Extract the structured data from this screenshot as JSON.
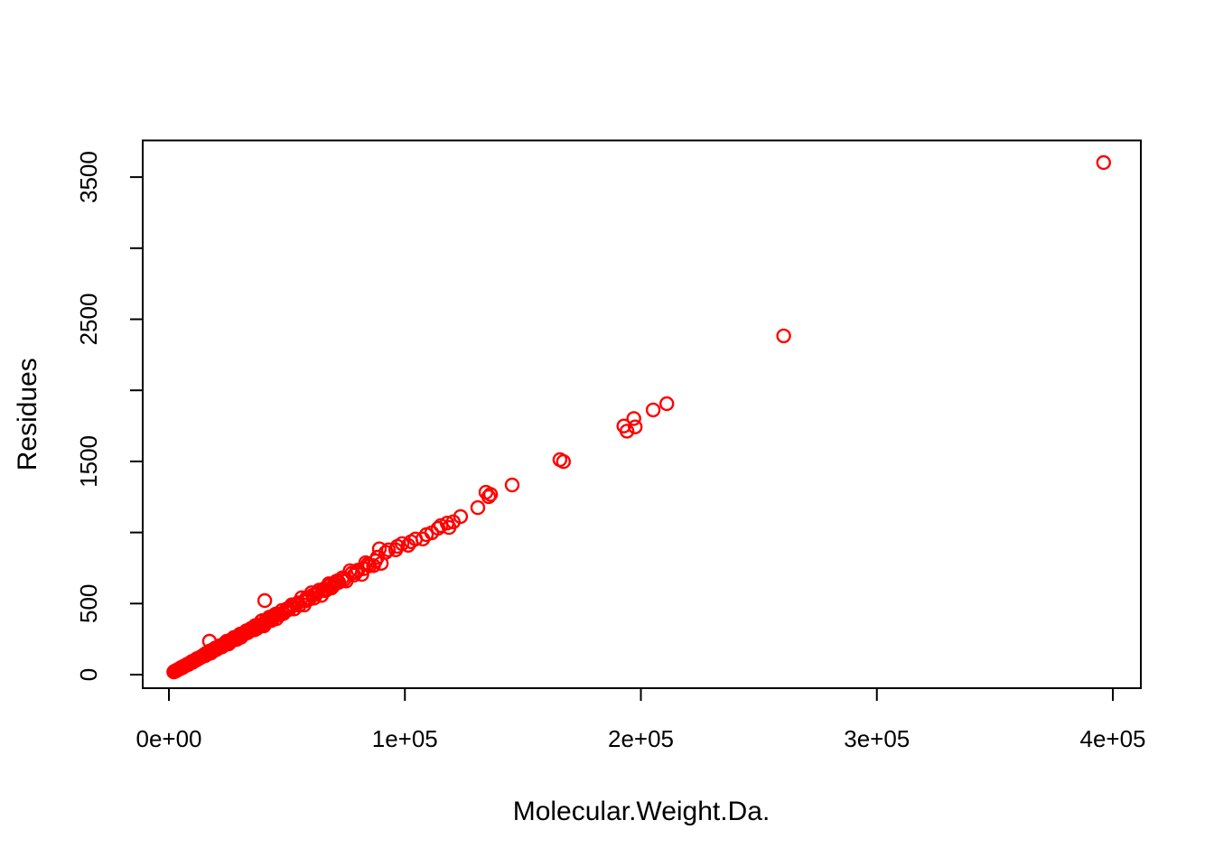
{
  "figure": {
    "background_color": "#FFFFFF",
    "axis_color": "#000000",
    "point_color": "#FF0000",
    "marker": "open-circle"
  },
  "chart_data": {
    "type": "scatter",
    "title": "",
    "xlabel": "Molecular.Weight.Da.",
    "ylabel": "Residues",
    "legend": "none",
    "grid": false,
    "xlim": [
      -15000,
      412000
    ],
    "ylim": [
      -95,
      3760
    ],
    "x_ticks": [
      {
        "value": 0,
        "label": "0e+00"
      },
      {
        "value": 100000,
        "label": "1e+05"
      },
      {
        "value": 200000,
        "label": "2e+05"
      },
      {
        "value": 300000,
        "label": "3e+05"
      },
      {
        "value": 400000,
        "label": "4e+05"
      }
    ],
    "y_ticks": [
      {
        "value": 0,
        "label": "0"
      },
      {
        "value": 500,
        "label": "500"
      },
      {
        "value": 1000,
        "label": ""
      },
      {
        "value": 1500,
        "label": "1500"
      },
      {
        "value": 2000,
        "label": ""
      },
      {
        "value": 2500,
        "label": "2500"
      },
      {
        "value": 3000,
        "label": ""
      },
      {
        "value": 3500,
        "label": "3500"
      }
    ],
    "points": [
      [
        2050,
        19
      ],
      [
        2300,
        22
      ],
      [
        2450,
        24
      ],
      [
        2650,
        25
      ],
      [
        3000,
        29
      ],
      [
        2200,
        20
      ],
      [
        2800,
        26
      ],
      [
        3400,
        30
      ],
      [
        4000,
        37
      ],
      [
        4600,
        41
      ],
      [
        5200,
        50
      ],
      [
        5800,
        50
      ],
      [
        6400,
        59
      ],
      [
        7000,
        63
      ],
      [
        7600,
        72
      ],
      [
        8200,
        72
      ],
      [
        8800,
        80
      ],
      [
        9400,
        88
      ],
      [
        10000,
        86
      ],
      [
        10600,
        97
      ],
      [
        11200,
        100
      ],
      [
        11800,
        111
      ],
      [
        12400,
        110
      ],
      [
        13000,
        118
      ],
      [
        13600,
        126
      ],
      [
        14200,
        128
      ],
      [
        14800,
        140
      ],
      [
        15400,
        134
      ],
      [
        16000,
        147
      ],
      [
        16600,
        147
      ],
      [
        17200,
        165
      ],
      [
        17800,
        152
      ],
      [
        18400,
        170
      ],
      [
        19000,
        170
      ],
      [
        19600,
        187
      ],
      [
        20200,
        177
      ],
      [
        2500,
        23
      ],
      [
        3100,
        27
      ],
      [
        3700,
        35
      ],
      [
        4300,
        38
      ],
      [
        4900,
        45
      ],
      [
        5500,
        47
      ],
      [
        6100,
        58
      ],
      [
        6700,
        60
      ],
      [
        7300,
        65
      ],
      [
        7900,
        74
      ],
      [
        8500,
        74
      ],
      [
        9100,
        83
      ],
      [
        9700,
        93
      ],
      [
        10300,
        92
      ],
      [
        10900,
        101
      ],
      [
        11500,
        101
      ],
      [
        12100,
        114
      ],
      [
        12700,
        115
      ],
      [
        13300,
        119
      ],
      [
        13900,
        128
      ],
      [
        14500,
        134
      ],
      [
        15100,
        132
      ],
      [
        15700,
        150
      ],
      [
        16300,
        146
      ],
      [
        16900,
        155
      ],
      [
        17500,
        151
      ],
      [
        18100,
        171
      ],
      [
        18700,
        168
      ],
      [
        19300,
        171
      ],
      [
        19900,
        186
      ],
      [
        20800,
        187
      ],
      [
        21550,
        203
      ],
      [
        22300,
        194
      ],
      [
        23050,
        211
      ],
      [
        23800,
        211
      ],
      [
        24550,
        236
      ],
      [
        25300,
        216
      ],
      [
        26050,
        241
      ],
      [
        26800,
        239
      ],
      [
        27550,
        262
      ],
      [
        28300,
        248
      ],
      [
        29050,
        264
      ],
      [
        29800,
        279
      ],
      [
        30550,
        263
      ],
      [
        31300,
        287
      ],
      [
        32050,
        286
      ],
      [
        32800,
        309
      ],
      [
        33550,
        297
      ],
      [
        34300,
        312
      ],
      [
        35050,
        325
      ],
      [
        35800,
        323
      ],
      [
        36550,
        345
      ],
      [
        37300,
        324
      ],
      [
        38050,
        349
      ],
      [
        38800,
        343
      ],
      [
        39550,
        380
      ],
      [
        40300,
        344
      ],
      [
        41050,
        380
      ],
      [
        41800,
        373
      ],
      [
        42550,
        405
      ],
      [
        43300,
        380
      ],
      [
        44050,
        400
      ],
      [
        44800,
        419
      ],
      [
        45550,
        393
      ],
      [
        46300,
        425
      ],
      [
        47050,
        420
      ],
      [
        47800,
        451
      ],
      [
        48550,
        430
      ],
      [
        49300,
        448
      ],
      [
        50050,
        463
      ],
      [
        21200,
        196
      ],
      [
        22700,
        199
      ],
      [
        24200,
        230
      ],
      [
        25700,
        229
      ],
      [
        27200,
        250
      ],
      [
        28700,
        247
      ],
      [
        30200,
        285
      ],
      [
        31700,
        286
      ],
      [
        33200,
        294
      ],
      [
        34700,
        324
      ],
      [
        36200,
        315
      ],
      [
        37700,
        343
      ],
      [
        39200,
        377
      ],
      [
        40700,
        363
      ],
      [
        42200,
        391
      ],
      [
        43700,
        383
      ],
      [
        45200,
        426
      ],
      [
        46700,
        425
      ],
      [
        48200,
        430
      ],
      [
        49700,
        456
      ],
      [
        51000,
        459
      ],
      [
        52050,
        491
      ],
      [
        53100,
        462
      ],
      [
        54150,
        497
      ],
      [
        55200,
        488
      ],
      [
        56250,
        541
      ],
      [
        57300,
        490
      ],
      [
        58350,
        540
      ],
      [
        59400,
        530
      ],
      [
        60450,
        576
      ],
      [
        61500,
        539
      ],
      [
        62550,
        569
      ],
      [
        63600,
        594
      ],
      [
        64650,
        557
      ],
      [
        65700,
        603
      ],
      [
        66750,
        596
      ],
      [
        67800,
        640
      ],
      [
        68850,
        609
      ],
      [
        69900,
        635
      ],
      [
        70950,
        657
      ],
      [
        72000,
        649
      ],
      [
        51500,
        475
      ],
      [
        54700,
        505
      ],
      [
        58000,
        520
      ],
      [
        61000,
        560
      ],
      [
        63000,
        580
      ],
      [
        66200,
        590
      ],
      [
        68300,
        630
      ],
      [
        70400,
        640
      ],
      [
        71500,
        660
      ],
      [
        69400,
        620
      ],
      [
        73500,
        681
      ],
      [
        75150,
        659
      ],
      [
        76800,
        731
      ],
      [
        78450,
        700
      ],
      [
        80100,
        735
      ],
      [
        81750,
        705
      ],
      [
        83400,
        787
      ],
      [
        85050,
        766
      ],
      [
        86700,
        767
      ],
      [
        88350,
        826
      ],
      [
        90000,
        783
      ],
      [
        74300,
        670
      ],
      [
        77600,
        715
      ],
      [
        79300,
        720
      ],
      [
        82500,
        745
      ],
      [
        84200,
        775
      ],
      [
        87500,
        800
      ],
      [
        89200,
        885
      ],
      [
        91900,
        860
      ],
      [
        93000,
        878
      ],
      [
        96100,
        878
      ],
      [
        96850,
        903
      ],
      [
        98800,
        922
      ],
      [
        101400,
        910
      ],
      [
        102600,
        935
      ],
      [
        104500,
        954
      ],
      [
        107600,
        954
      ],
      [
        109100,
        985
      ],
      [
        111400,
        998
      ],
      [
        114050,
        1029
      ],
      [
        115200,
        1048
      ],
      [
        117900,
        1066
      ],
      [
        118700,
        1035
      ],
      [
        120500,
        1075
      ],
      [
        123600,
        1112
      ],
      [
        130900,
        1175
      ],
      [
        134350,
        1283
      ],
      [
        135500,
        1252
      ],
      [
        136300,
        1268
      ],
      [
        17200,
        235
      ],
      [
        40600,
        521
      ],
      [
        145450,
        1334
      ],
      [
        165700,
        1512
      ],
      [
        167200,
        1499
      ],
      [
        192800,
        1749
      ],
      [
        194100,
        1713
      ],
      [
        197000,
        1802
      ],
      [
        197600,
        1743
      ],
      [
        205200,
        1862
      ],
      [
        211000,
        1906
      ],
      [
        260500,
        2383
      ],
      [
        396100,
        3602
      ]
    ]
  }
}
